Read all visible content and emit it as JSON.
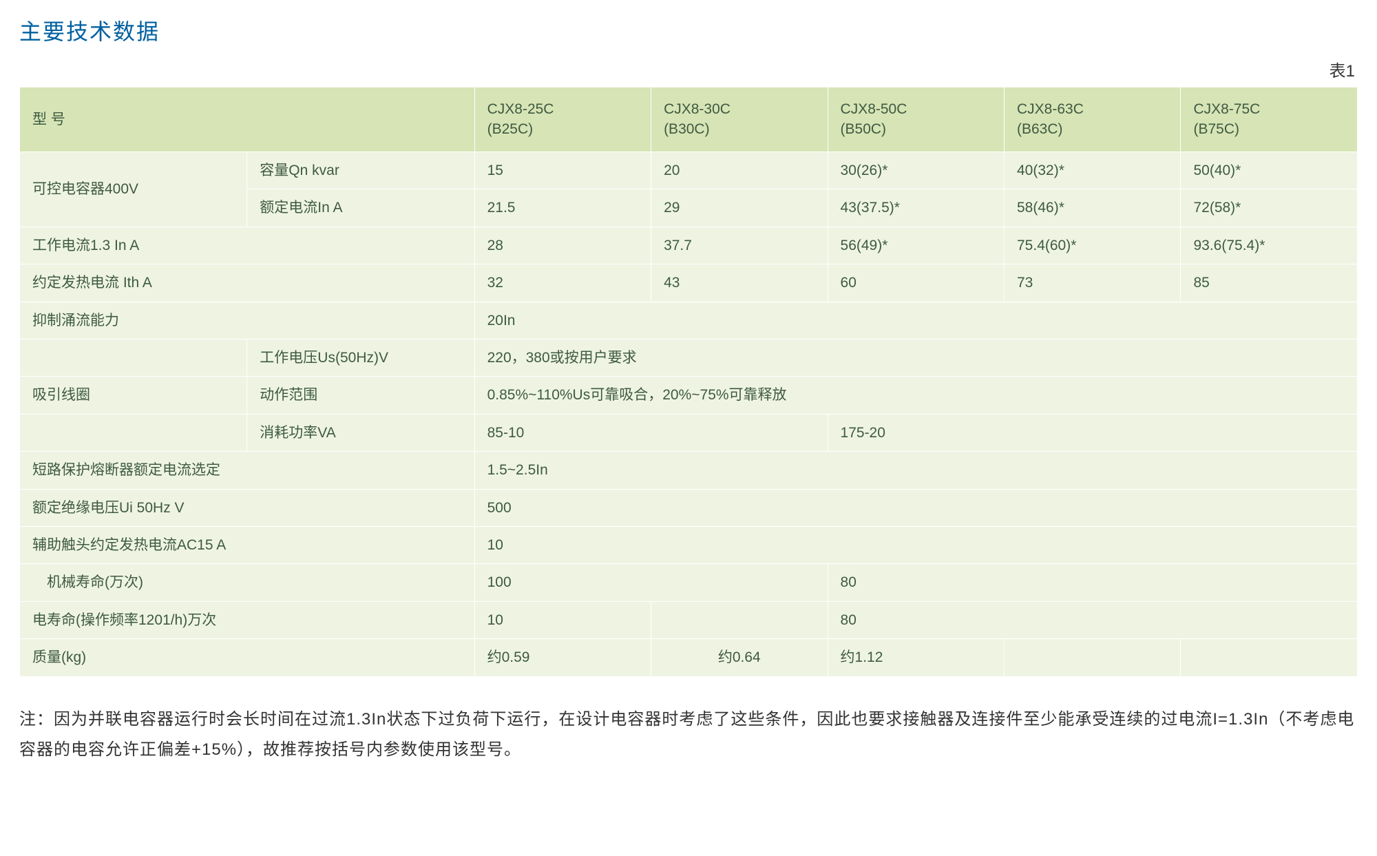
{
  "title": "主要技术数据",
  "table_label": "表1",
  "colors": {
    "title": "#0060a0",
    "header_bg": "#d7e4b5",
    "body_bg": "#eff4e2",
    "border": "#ffffff",
    "text": "#3e5a42",
    "footnote": "#333333",
    "page_bg": "#ffffff"
  },
  "columns": [
    "CJX8-25C\n(B25C)",
    "CJX8-30C\n(B30C)",
    "CJX8-50C\n(B50C)",
    "CJX8-63C\n(B63C)",
    "CJX8-75C\n(B75C)"
  ],
  "header_model": "型 号",
  "rows": {
    "r1_group": "可控电容器400V",
    "r1a_label": "容量Qn kvar",
    "r1a": [
      "15",
      "20",
      "30(26)*",
      "40(32)*",
      "50(40)*"
    ],
    "r1b_label": "额定电流In A",
    "r1b": [
      "21.5",
      "29",
      "43(37.5)*",
      "58(46)*",
      "72(58)*"
    ],
    "r2_label": "工作电流1.3 In A",
    "r2": [
      "28",
      "37.7",
      "56(49)*",
      "75.4(60)*",
      "93.6(75.4)*"
    ],
    "r3_label": "约定发热电流 Ith A",
    "r3": [
      "32",
      "43",
      "60",
      "73",
      "85"
    ],
    "r4_label": "抑制涌流能力",
    "r4_val": "20In",
    "r5_group": "吸引线圈",
    "r5a_label": "工作电压Us(50Hz)V",
    "r5a_val": "220，380或按用户要求",
    "r5b_label": "动作范围",
    "r5b_val": "0.85%~110%Us可靠吸合，20%~75%可靠释放",
    "r5c_label": "消耗功率VA",
    "r5c_v1": "85-10",
    "r5c_v2": "175-20",
    "r6_label": "短路保护熔断器额定电流选定",
    "r6_val": "1.5~2.5In",
    "r7_label": "额定绝缘电压Ui  50Hz V",
    "r7_val": "500",
    "r8_label": "辅助触头约定发热电流AC15 A",
    "r8_val": "10",
    "r9_label": " 机械寿命(万次)",
    "r9_v1": "100",
    "r9_v2": "80",
    "r10_label": "电寿命(操作频率1201/h)万次",
    "r10_v1": "10",
    "r10_v2": "80",
    "r11_label": "质量(kg)",
    "r11": [
      "约0.59",
      "约0.64",
      "约1.12"
    ]
  },
  "footnote": "注：因为并联电容器运行时会长时间在过流1.3In状态下过负荷下运行，在设计电容器时考虑了这些条件，因此也要求接触器及连接件至少能承受连续的过电流I=1.3In（不考虑电容器的电容允许正偏差+15%），故推荐按括号内参数使用该型号。"
}
